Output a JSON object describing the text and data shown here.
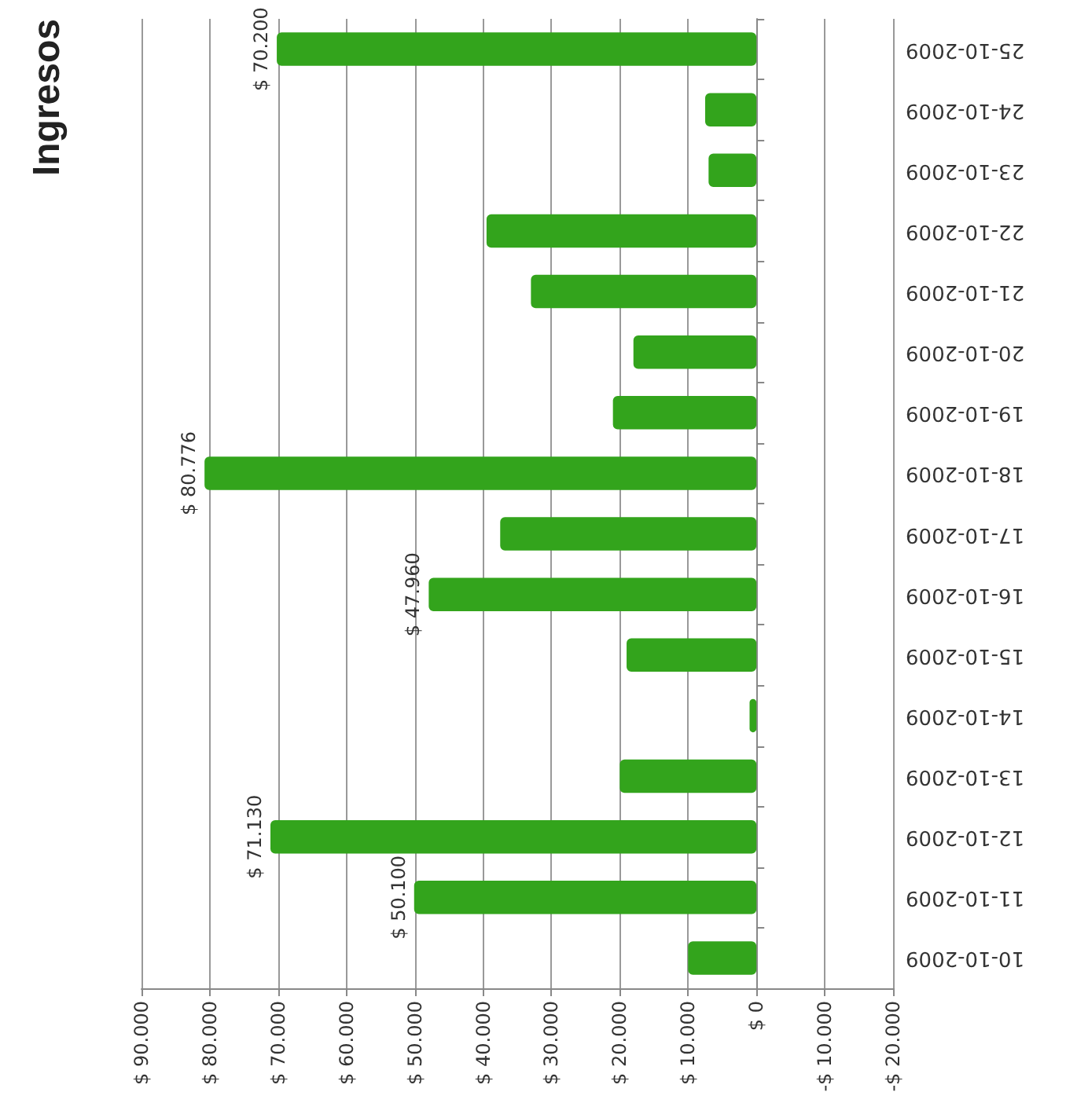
{
  "chart_data": {
    "type": "bar",
    "orientation": "horizontal",
    "title": "Ingresos",
    "categories": [
      "25-10-2009",
      "24-10-2009",
      "23-10-2009",
      "22-10-2009",
      "21-10-2009",
      "20-10-2009",
      "19-10-2009",
      "18-10-2009",
      "17-10-2009",
      "16-10-2009",
      "15-10-2009",
      "14-10-2009",
      "13-10-2009",
      "12-10-2009",
      "11-10-2009",
      "10-10-2009"
    ],
    "values": [
      70200,
      7500,
      7000,
      39500,
      33000,
      18000,
      21000,
      80776,
      37500,
      47960,
      19000,
      1000,
      20000,
      71130,
      50100,
      10000
    ],
    "value_labels": [
      "$ 70.200",
      null,
      null,
      null,
      null,
      null,
      null,
      "$ 80.776",
      null,
      "$ 47.960",
      null,
      null,
      null,
      "$ 71.130",
      "$ 50.100",
      null
    ],
    "color": "#33a41c",
    "xlim": [
      90000,
      -20000
    ],
    "xticks": [
      {
        "value": 90000,
        "label": "$ 90.000"
      },
      {
        "value": 80000,
        "label": "$ 80.000"
      },
      {
        "value": 70000,
        "label": "$ 70.000"
      },
      {
        "value": 60000,
        "label": "$ 60.000"
      },
      {
        "value": 50000,
        "label": "$ 50.000"
      },
      {
        "value": 40000,
        "label": "$ 40.000"
      },
      {
        "value": 30000,
        "label": "$ 30.000"
      },
      {
        "value": 20000,
        "label": "$ 20.000"
      },
      {
        "value": 10000,
        "label": "$ 10.000"
      },
      {
        "value": 0,
        "label": "$ 0"
      },
      {
        "value": -10000,
        "label": "-$ 10.000"
      },
      {
        "value": -20000,
        "label": "-$ 20.000"
      }
    ],
    "grid": "x"
  }
}
